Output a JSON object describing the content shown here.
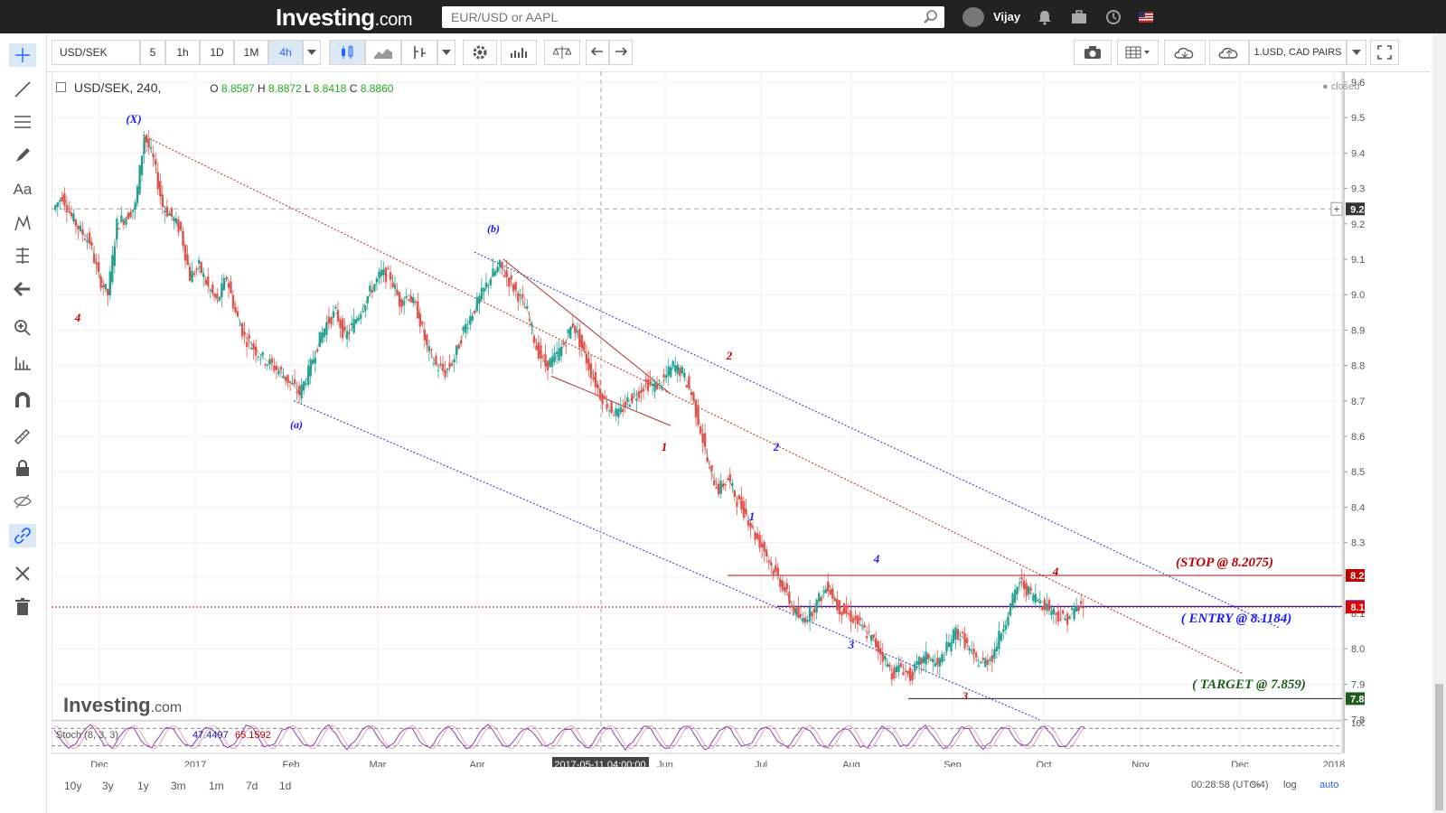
{
  "site": {
    "logo": "Investing",
    "logo_suffix": ".com",
    "search_placeholder": "EUR/USD or AAPL",
    "username": "Vijay"
  },
  "toolbar": {
    "symbol": "USD/SEK",
    "intervals": [
      "5",
      "1h",
      "1D",
      "1M",
      "4h"
    ],
    "active_interval": "4h",
    "watchlist": "1.USD, CAD PAIRS"
  },
  "legend": {
    "symbol": "USD/SEK, 240,",
    "o_label": "O",
    "o": "8.8587",
    "h_label": "H",
    "h": "8.8872",
    "l_label": "L",
    "l": "8.8418",
    "c_label": "C",
    "c": "8.8860"
  },
  "status": "closed",
  "periods": [
    "10y",
    "3y",
    "1y",
    "3m",
    "1m",
    "7d",
    "1d"
  ],
  "bottom_info": {
    "time": "00:28:58 (UTC-4)",
    "percent": "%",
    "log": "log",
    "auto": "auto"
  },
  "watermark": {
    "main": "Investing",
    "suffix": ".com"
  },
  "crosshair_date": "2017-05-11 04:00:00",
  "colors": {
    "up": "#26a69a",
    "down": "#ef5350",
    "red_label": "#c00000",
    "blue_label": "#1a1aff",
    "green_label": "#1e5c1e"
  },
  "chart_data": {
    "type": "line",
    "title": "USD/SEK, 240,",
    "x_axis_labels": [
      "Dec",
      "2017",
      "Feb",
      "Mar",
      "Apr",
      "May",
      "Jun",
      "Jul",
      "Aug",
      "Sep",
      "Oct",
      "Nov",
      "Dec",
      "2018"
    ],
    "y_axis_labels": [
      "9.6000",
      "9.5000",
      "9.4000",
      "9.3000",
      "9.2000",
      "9.1000",
      "9.0000",
      "8.9000",
      "8.8000",
      "8.7000",
      "8.6000",
      "8.5000",
      "8.4000",
      "8.3000",
      "8.2000",
      "8.1000",
      "8.0000",
      "7.9000",
      "7.8000"
    ],
    "ylim": [
      7.8,
      9.6
    ],
    "series": [
      {
        "values": [
          9.24,
          9.28,
          9.22,
          9.18,
          9.15,
          9.05,
          9.0,
          9.2,
          9.22,
          9.25,
          9.45,
          9.38,
          9.25,
          9.22,
          9.18,
          9.05,
          9.08,
          9.02,
          8.98,
          9.05,
          8.95,
          8.88,
          8.85,
          8.82,
          8.8,
          8.78,
          8.75,
          8.72,
          8.78,
          8.86,
          8.92,
          8.95,
          8.88,
          8.92,
          8.97,
          9.02,
          9.06,
          9.05,
          8.98,
          9.0,
          8.95,
          8.85,
          8.8,
          8.78,
          8.82,
          8.9,
          8.95,
          9.0,
          9.05,
          9.08,
          9.04,
          9.0,
          8.95,
          8.85,
          8.8,
          8.82,
          8.86,
          8.92,
          8.85,
          8.78,
          8.72,
          8.68,
          8.66,
          8.7,
          8.72,
          8.75,
          8.74,
          8.76,
          8.8,
          8.78,
          8.72,
          8.62,
          8.5,
          8.45,
          8.48,
          8.42,
          8.38,
          8.32,
          8.28,
          8.22,
          8.18,
          8.12,
          8.08,
          8.1,
          8.14,
          8.18,
          8.12,
          8.1,
          8.08,
          8.05,
          8.02,
          7.98,
          7.93,
          7.95,
          7.92,
          7.96,
          7.98,
          7.95,
          8.0,
          8.05,
          8.02,
          7.97,
          7.96,
          7.98,
          8.05,
          8.12,
          8.19,
          8.16,
          8.14,
          8.12,
          8.1,
          8.08,
          8.11,
          8.12
        ]
      }
    ],
    "stoch": {
      "label": "Stoch (8, 3, 3)",
      "k": "47.4497",
      "d": "65.1592",
      "ylim": [
        0,
        100
      ]
    },
    "price_tags": [
      {
        "value": "9.2422",
        "price": 9.2422,
        "color": "#ffffff",
        "text_color": "#333333"
      },
      {
        "value": "8.2072",
        "price": 8.2072,
        "color": "#c00000",
        "text_color": "#ffffff"
      },
      {
        "value": "8.1195",
        "price": 8.1195,
        "color": "#1a1aff",
        "text_color": "#ffffff"
      },
      {
        "value": "8.1179",
        "price": 8.1179,
        "color": "#e00000",
        "text_color": "#ffffff"
      },
      {
        "value": "7.8592",
        "price": 7.8592,
        "color": "#1e5c1e",
        "text_color": "#ffffff"
      }
    ],
    "annotations": [
      {
        "text": "(X)",
        "color": "blue"
      },
      {
        "text": "4",
        "color": "red"
      },
      {
        "text": "(a)",
        "color": "blue"
      },
      {
        "text": "(b)",
        "color": "blue"
      },
      {
        "text": "1",
        "color": "red"
      },
      {
        "text": "2",
        "color": "red"
      },
      {
        "text": "2",
        "color": "blue"
      },
      {
        "text": "1",
        "color": "blue"
      },
      {
        "text": "4",
        "color": "blue"
      },
      {
        "text": "3",
        "color": "blue"
      },
      {
        "text": "3",
        "color": "red"
      },
      {
        "text": "4",
        "color": "red"
      },
      {
        "text": "(STOP @ 8.2075)",
        "color": "red"
      },
      {
        "text": "( ENTRY @ 8.1184)",
        "color": "blue"
      },
      {
        "text": "( TARGET @ 7.859)",
        "color": "green"
      }
    ]
  }
}
